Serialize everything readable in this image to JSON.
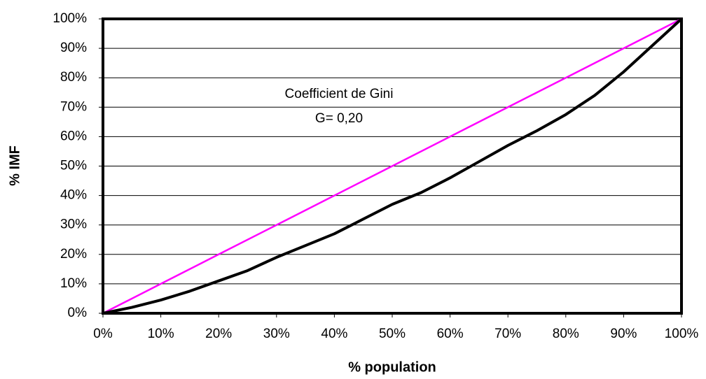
{
  "chart_data": {
    "type": "line",
    "xlabel": "% population",
    "ylabel": "% IMF",
    "annotations": [
      "Coefficient de Gini",
      "G= 0,20"
    ],
    "series": [
      {
        "color": "#ff00ff",
        "x": [
          0,
          5,
          10,
          20,
          30,
          40,
          50,
          60,
          70,
          80,
          90,
          100
        ],
        "values": [
          0,
          5,
          10,
          20,
          30,
          40,
          50,
          60,
          70,
          80,
          90,
          100
        ]
      },
      {
        "color": "#000000",
        "x": [
          0,
          5,
          10,
          15,
          20,
          25,
          30,
          35,
          40,
          45,
          50,
          55,
          60,
          65,
          70,
          75,
          80,
          85,
          90,
          95,
          100
        ],
        "values": [
          0,
          2,
          4.5,
          7.5,
          11,
          14.5,
          19,
          23,
          27,
          32,
          37,
          41,
          46,
          51.5,
          57,
          62,
          67.5,
          74,
          82,
          91,
          100
        ]
      }
    ],
    "xlim": [
      0,
      100
    ],
    "ylim": [
      0,
      100
    ],
    "xticks": [
      {
        "value": 0,
        "label": "0%"
      },
      {
        "value": 10,
        "label": "10%"
      },
      {
        "value": 20,
        "label": "20%"
      },
      {
        "value": 30,
        "label": "30%"
      },
      {
        "value": 40,
        "label": "40%"
      },
      {
        "value": 50,
        "label": "50%"
      },
      {
        "value": 60,
        "label": "60%"
      },
      {
        "value": 70,
        "label": "70%"
      },
      {
        "value": 80,
        "label": "80%"
      },
      {
        "value": 90,
        "label": "90%"
      },
      {
        "value": 100,
        "label": "100%"
      }
    ],
    "yticks": [
      {
        "value": 0,
        "label": "0%"
      },
      {
        "value": 10,
        "label": "10%"
      },
      {
        "value": 20,
        "label": "20%"
      },
      {
        "value": 30,
        "label": "30%"
      },
      {
        "value": 40,
        "label": "40%"
      },
      {
        "value": 50,
        "label": "50%"
      },
      {
        "value": 60,
        "label": "60%"
      },
      {
        "value": 70,
        "label": "70%"
      },
      {
        "value": 80,
        "label": "80%"
      },
      {
        "value": 90,
        "label": "90%"
      },
      {
        "value": 100,
        "label": "100%"
      }
    ],
    "grid": true
  }
}
